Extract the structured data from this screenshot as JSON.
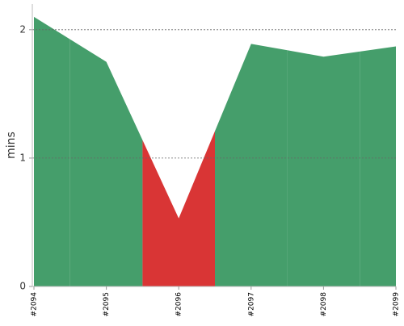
{
  "chart_data": {
    "type": "area",
    "y_label": "mins",
    "categories": [
      "#2094",
      "#2095",
      "#2096",
      "#2097",
      "#2098",
      "#2099"
    ],
    "values": [
      2.1,
      1.75,
      0.53,
      1.89,
      1.79,
      1.87
    ],
    "colors": [
      "#459e6b",
      "#459e6b",
      "#d93535",
      "#459e6b",
      "#459e6b",
      "#459e6b"
    ],
    "ylim": [
      0,
      2.2
    ],
    "yticks": [
      0,
      1,
      2
    ],
    "grid": true
  }
}
